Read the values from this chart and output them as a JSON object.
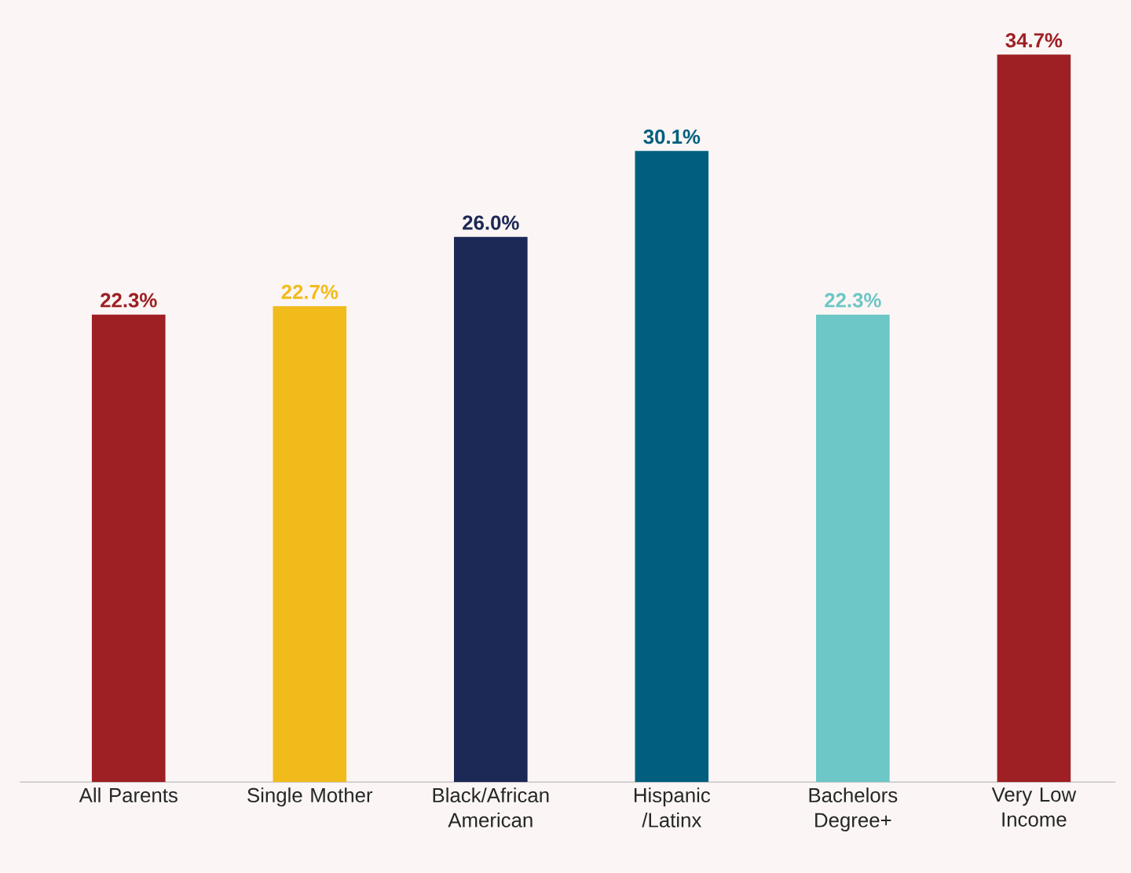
{
  "chart_data": {
    "type": "bar",
    "categories": [
      "All Parents",
      "Single Mother",
      "Black/African American",
      "Hispanic /Latinx",
      "Bachelors Degree+",
      "Very Low Income"
    ],
    "values": [
      22.3,
      22.7,
      26.0,
      30.1,
      22.3,
      34.7
    ],
    "colors": [
      "#9e1f24",
      "#f2bb1c",
      "#1c2855",
      "#005f7f",
      "#6cc7c6",
      "#9e1f24"
    ],
    "value_labels": [
      "22.3%",
      "22.7%",
      "26.0%",
      "30.1%",
      "22.3%",
      "34.7%"
    ],
    "data_labels": false
  }
}
